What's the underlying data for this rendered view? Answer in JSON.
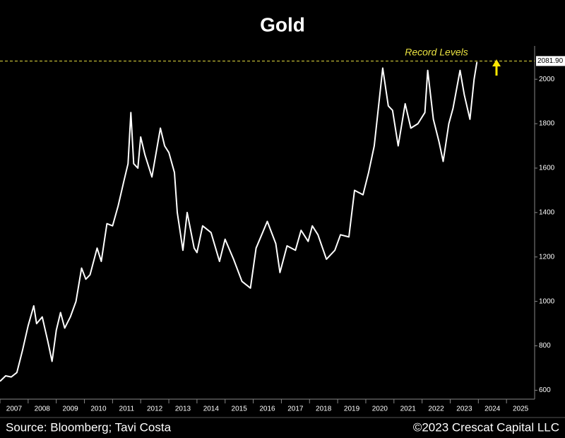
{
  "chart_data": {
    "type": "line",
    "title": "Gold",
    "x": [
      2007.0,
      2007.2,
      2007.4,
      2007.6,
      2007.8,
      2008.0,
      2008.2,
      2008.3,
      2008.5,
      2008.7,
      2008.85,
      2009.0,
      2009.15,
      2009.3,
      2009.5,
      2009.7,
      2009.9,
      2010.05,
      2010.2,
      2010.45,
      2010.6,
      2010.8,
      2011.0,
      2011.2,
      2011.4,
      2011.55,
      2011.65,
      2011.75,
      2011.9,
      2012.0,
      2012.15,
      2012.4,
      2012.7,
      2012.85,
      2013.0,
      2013.2,
      2013.3,
      2013.5,
      2013.65,
      2013.9,
      2014.0,
      2014.2,
      2014.5,
      2014.8,
      2015.0,
      2015.3,
      2015.6,
      2015.9,
      2016.1,
      2016.5,
      2016.8,
      2016.95,
      2017.2,
      2017.5,
      2017.7,
      2017.95,
      2018.1,
      2018.3,
      2018.6,
      2018.9,
      2019.1,
      2019.4,
      2019.6,
      2019.9,
      2020.1,
      2020.3,
      2020.6,
      2020.8,
      2020.95,
      2021.15,
      2021.4,
      2021.6,
      2021.85,
      2022.1,
      2022.2,
      2022.4,
      2022.6,
      2022.75,
      2022.95,
      2023.1,
      2023.35,
      2023.5,
      2023.7,
      2023.85,
      2023.95
    ],
    "series": [
      {
        "name": "Gold",
        "color": "#ffffff",
        "values": [
          640,
          665,
          660,
          680,
          780,
          890,
          980,
          900,
          930,
          820,
          730,
          870,
          950,
          880,
          930,
          1000,
          1150,
          1100,
          1120,
          1240,
          1180,
          1350,
          1340,
          1430,
          1540,
          1620,
          1850,
          1620,
          1600,
          1740,
          1660,
          1560,
          1780,
          1700,
          1670,
          1580,
          1400,
          1230,
          1400,
          1240,
          1220,
          1340,
          1310,
          1180,
          1280,
          1190,
          1090,
          1060,
          1240,
          1360,
          1260,
          1130,
          1250,
          1230,
          1320,
          1270,
          1340,
          1300,
          1190,
          1230,
          1300,
          1290,
          1500,
          1480,
          1580,
          1700,
          2050,
          1880,
          1860,
          1700,
          1890,
          1780,
          1800,
          1850,
          2040,
          1820,
          1720,
          1630,
          1800,
          1870,
          2040,
          1930,
          1820,
          2000,
          2078
        ]
      }
    ],
    "xlim": [
      2007,
      2026
    ],
    "xticks": [
      2007,
      2008,
      2009,
      2010,
      2011,
      2012,
      2013,
      2014,
      2015,
      2016,
      2017,
      2018,
      2019,
      2020,
      2021,
      2022,
      2023,
      2024,
      2025
    ],
    "ylim": [
      560,
      2150
    ],
    "yticks": [
      600,
      800,
      1000,
      1200,
      1400,
      1600,
      1800,
      2000
    ],
    "record_level": {
      "value": 2081.9,
      "label": "2081.90"
    },
    "annotation": "Record Levels",
    "source": "Source: Bloomberg; Tavi Costa",
    "copyright": "©2023 Crescat Capital LLC"
  }
}
